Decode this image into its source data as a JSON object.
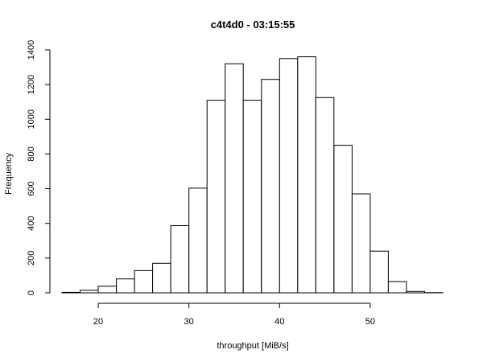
{
  "chart_data": {
    "type": "bar",
    "title": "c4t4d0 - 03:15:55",
    "xlabel": "throughput [MiB/s]",
    "ylabel": "Frequency",
    "bins": [
      {
        "x0": 16,
        "x1": 18,
        "count": 3
      },
      {
        "x0": 18,
        "x1": 20,
        "count": 15
      },
      {
        "x0": 20,
        "x1": 22,
        "count": 38
      },
      {
        "x0": 22,
        "x1": 24,
        "count": 80
      },
      {
        "x0": 24,
        "x1": 26,
        "count": 128
      },
      {
        "x0": 26,
        "x1": 28,
        "count": 170
      },
      {
        "x0": 28,
        "x1": 30,
        "count": 387
      },
      {
        "x0": 30,
        "x1": 32,
        "count": 603
      },
      {
        "x0": 32,
        "x1": 34,
        "count": 1110
      },
      {
        "x0": 34,
        "x1": 36,
        "count": 1320
      },
      {
        "x0": 36,
        "x1": 38,
        "count": 1110
      },
      {
        "x0": 38,
        "x1": 40,
        "count": 1230
      },
      {
        "x0": 40,
        "x1": 42,
        "count": 1350
      },
      {
        "x0": 42,
        "x1": 44,
        "count": 1360
      },
      {
        "x0": 44,
        "x1": 46,
        "count": 1125
      },
      {
        "x0": 46,
        "x1": 48,
        "count": 850
      },
      {
        "x0": 48,
        "x1": 50,
        "count": 570
      },
      {
        "x0": 50,
        "x1": 52,
        "count": 240
      },
      {
        "x0": 52,
        "x1": 54,
        "count": 65
      },
      {
        "x0": 54,
        "x1": 56,
        "count": 8
      },
      {
        "x0": 56,
        "x1": 58,
        "count": 1
      }
    ],
    "xlim": [
      16,
      58
    ],
    "ylim": [
      0,
      1400
    ],
    "x_ticks": [
      20,
      30,
      40,
      50
    ],
    "y_ticks": [
      0,
      200,
      400,
      600,
      800,
      1000,
      1200,
      1400
    ],
    "grid": false,
    "bar_fill": "#ffffff",
    "bar_stroke": "#000000"
  }
}
